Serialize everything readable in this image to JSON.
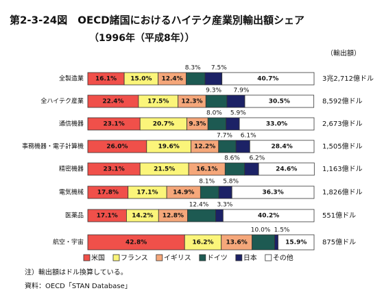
{
  "chart_data": {
    "type": "stacked-bar-horizontal",
    "title": "第2-3-24図　OECD諸国におけるハイテク産業別輸出額シェア",
    "subtitle": "（1996年（平成8年））",
    "totals_header": "（輸出額）",
    "categories": [
      "全製造業",
      "全ハイテク産業",
      "通信機器",
      "事務機器・電子計算機",
      "精密機器",
      "電気機械",
      "医薬品",
      "航空・宇宙"
    ],
    "totals": [
      "3兆2,712億ドル",
      "8,592億ドル",
      "2,673億ドル",
      "1,505億ドル",
      "1,163億ドル",
      "1,826億ドル",
      "551億ドル",
      "875億ドル"
    ],
    "xlim": [
      0,
      100
    ],
    "series": [
      {
        "name": "米国",
        "color": "#f0504a",
        "values": [
          16.1,
          22.4,
          23.1,
          26.0,
          23.1,
          17.8,
          17.1,
          42.8
        ],
        "value_labels": [
          "16.1%",
          "22.4%",
          "23.1%",
          "26.0%",
          "23.1%",
          "17.8%",
          "17.1%",
          "42.8%"
        ]
      },
      {
        "name": "フランス",
        "color": "#fbf57a",
        "values": [
          15.0,
          17.5,
          20.7,
          19.6,
          21.5,
          17.1,
          14.2,
          16.2
        ],
        "value_labels": [
          "15.0%",
          "17.5%",
          "20.7%",
          "19.6%",
          "21.5%",
          "17.1%",
          "14.2%",
          "16.2%"
        ]
      },
      {
        "name": "イギリス",
        "color": "#f5a77a",
        "values": [
          12.4,
          12.3,
          9.3,
          12.2,
          16.1,
          14.9,
          12.8,
          13.6
        ],
        "value_labels": [
          "12.4%",
          "12.3%",
          "9.3%",
          "12.2%",
          "16.1%",
          "14.9%",
          "12.8%",
          "13.6%"
        ]
      },
      {
        "name": "ドイツ",
        "color": "#1d5a52",
        "values": [
          8.3,
          9.3,
          8.0,
          7.7,
          8.6,
          8.1,
          12.4,
          10.0
        ],
        "value_labels": [
          "8.3%",
          "9.3%",
          "8.0%",
          "7.7%",
          "8.6%",
          "8.1%",
          "12.4%",
          "10.0%"
        ]
      },
      {
        "name": "日本",
        "color": "#1c2266",
        "values": [
          7.5,
          7.9,
          5.9,
          6.1,
          6.2,
          5.8,
          3.3,
          1.5
        ],
        "value_labels": [
          "7.5%",
          "7.9%",
          "5.9%",
          "6.1%",
          "6.2%",
          "5.8%",
          "3.3%",
          "1.5%"
        ]
      },
      {
        "name": "その他",
        "color": "#ffffff",
        "values": [
          40.7,
          30.5,
          33.0,
          28.4,
          24.6,
          36.3,
          40.2,
          15.9
        ],
        "value_labels": [
          "40.7%",
          "30.5%",
          "33.0%",
          "28.4%",
          "24.6%",
          "36.3%",
          "40.2%",
          "15.9%"
        ]
      }
    ],
    "notes": [
      "注）輸出額はドル換算している。",
      "資料：OECD「STAN Database」"
    ]
  }
}
